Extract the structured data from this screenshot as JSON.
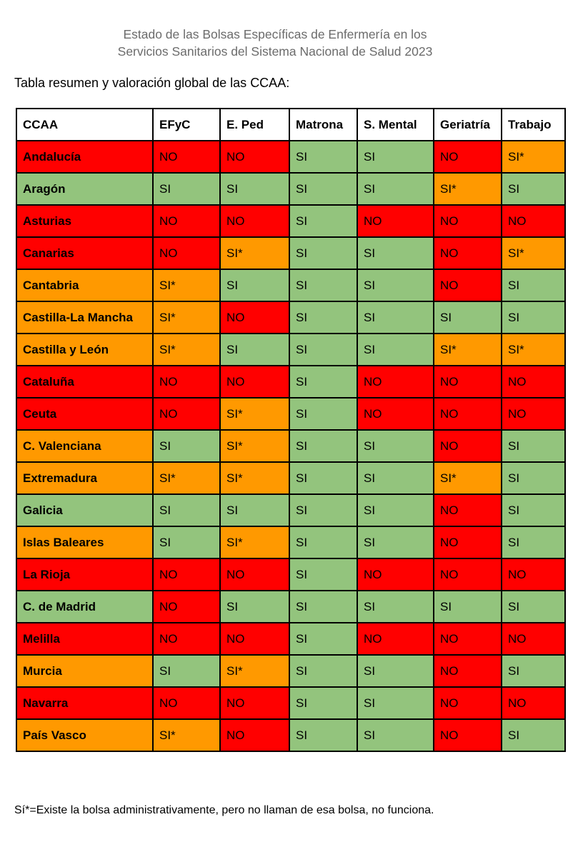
{
  "header": {
    "title_line1": "Estado de las Bolsas Específicas de Enfermería en los",
    "title_line2": "Servicios Sanitarios del Sistema Nacional de Salud 2023",
    "subtitle": "Tabla resumen y valoración global de las CCAA:"
  },
  "colors": {
    "red": "#ff0000",
    "green": "#93c47d",
    "orange": "#ff9900"
  },
  "table": {
    "columns": [
      "CCAA",
      "EFyC",
      "E. Ped",
      "Matrona",
      "S. Mental",
      "Geriatría",
      "Trabajo"
    ],
    "rows": [
      {
        "name": "Andalucía",
        "status": "red",
        "values": [
          "NO",
          "NO",
          "SI",
          "SI",
          "NO",
          "SI*"
        ]
      },
      {
        "name": "Aragón",
        "status": "green",
        "values": [
          "SI",
          "SI",
          "SI",
          "SI",
          "SI*",
          "SI"
        ]
      },
      {
        "name": "Asturias",
        "status": "red",
        "values": [
          "NO",
          "NO",
          "SI",
          "NO",
          "NO",
          "NO"
        ]
      },
      {
        "name": "Canarias",
        "status": "red",
        "values": [
          "NO",
          "SI*",
          "SI",
          "SI",
          "NO",
          "SI*"
        ]
      },
      {
        "name": "Cantabria",
        "status": "orange",
        "values": [
          "SI*",
          "SI",
          "SI",
          "SI",
          "NO",
          "SI"
        ]
      },
      {
        "name": "Castilla-La Mancha",
        "status": "orange",
        "values": [
          "SI*",
          "NO",
          "SI",
          "SI",
          "SI",
          "SI"
        ]
      },
      {
        "name": "Castilla y León",
        "status": "orange",
        "values": [
          "SI*",
          "SI",
          "SI",
          "SI",
          "SI*",
          "SI*"
        ]
      },
      {
        "name": "Cataluña",
        "status": "red",
        "values": [
          "NO",
          "NO",
          "SI",
          "NO",
          "NO",
          "NO"
        ]
      },
      {
        "name": "Ceuta",
        "status": "red",
        "values": [
          "NO",
          "SI*",
          "SI",
          "NO",
          "NO",
          "NO"
        ]
      },
      {
        "name": "C. Valenciana",
        "status": "orange",
        "values": [
          "SI",
          "SI*",
          "SI",
          "SI",
          "NO",
          "SI"
        ]
      },
      {
        "name": "Extremadura",
        "status": "orange",
        "values": [
          "SI*",
          "SI*",
          "SI",
          "SI",
          "SI*",
          "SI"
        ]
      },
      {
        "name": "Galicia",
        "status": "green",
        "values": [
          "SI",
          "SI",
          "SI",
          "SI",
          "NO",
          "SI"
        ]
      },
      {
        "name": "Islas Baleares",
        "status": "orange",
        "values": [
          "SI",
          "SI*",
          "SI",
          "SI",
          "NO",
          "SI"
        ]
      },
      {
        "name": "La Rioja",
        "status": "red",
        "values": [
          "NO",
          "NO",
          "SI",
          "NO",
          "NO",
          "NO"
        ]
      },
      {
        "name": "C. de Madrid",
        "status": "green",
        "values": [
          "NO",
          "SI",
          "SI",
          "SI",
          "SI",
          "SI"
        ]
      },
      {
        "name": "Melilla",
        "status": "red",
        "values": [
          "NO",
          "NO",
          "SI",
          "NO",
          "NO",
          "NO"
        ]
      },
      {
        "name": "Murcia",
        "status": "orange",
        "values": [
          "SI",
          "SI*",
          "SI",
          "SI",
          "NO",
          "SI"
        ]
      },
      {
        "name": "Navarra",
        "status": "red",
        "values": [
          "NO",
          "NO",
          "SI",
          "SI",
          "NO",
          "NO"
        ]
      },
      {
        "name": "País Vasco",
        "status": "orange",
        "values": [
          "SI*",
          "NO",
          "SI",
          "SI",
          "NO",
          "SI"
        ]
      }
    ]
  },
  "footnote": "Sí*=Existe la bolsa administrativamente, pero no llaman de esa bolsa, no funciona."
}
